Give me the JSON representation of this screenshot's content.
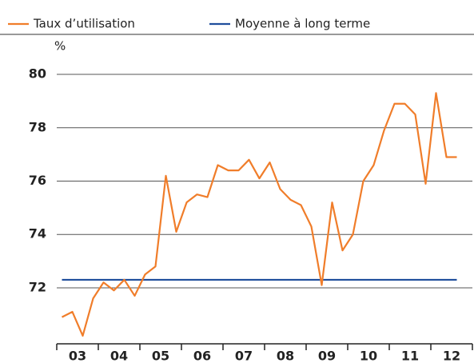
{
  "chart_data": {
    "type": "line",
    "unit_label": "%",
    "x": [
      3.125,
      3.375,
      3.625,
      3.875,
      4.125,
      4.375,
      4.625,
      4.875,
      5.125,
      5.375,
      5.625,
      5.875,
      6.125,
      6.375,
      6.625,
      6.875,
      7.125,
      7.375,
      7.625,
      7.875,
      8.125,
      8.375,
      8.625,
      8.875,
      9.125,
      9.375,
      9.625,
      9.875,
      10.125,
      10.375,
      10.625,
      10.875,
      11.125,
      11.375,
      11.625,
      11.875,
      12.125,
      12.375,
      12.625
    ],
    "series": [
      {
        "name": "Taux d’utilisation",
        "color": "#f07d2a",
        "values": [
          70.9,
          71.1,
          70.2,
          71.6,
          72.2,
          71.9,
          72.3,
          71.7,
          72.5,
          72.8,
          76.2,
          74.1,
          75.2,
          75.5,
          75.4,
          76.6,
          76.4,
          76.4,
          76.8,
          76.1,
          76.7,
          75.7,
          75.3,
          75.1,
          74.3,
          72.1,
          75.2,
          73.4,
          74.0,
          76.0,
          76.6,
          77.9,
          78.9,
          78.9,
          78.5,
          75.9,
          79.3,
          76.9,
          76.9
        ]
      },
      {
        "name": "Moyenne à long terme",
        "color": "#1f4e9c",
        "values": [
          72.3,
          72.3,
          72.3,
          72.3,
          72.3,
          72.3,
          72.3,
          72.3,
          72.3,
          72.3,
          72.3,
          72.3,
          72.3,
          72.3,
          72.3,
          72.3,
          72.3,
          72.3,
          72.3,
          72.3,
          72.3,
          72.3,
          72.3,
          72.3,
          72.3,
          72.3,
          72.3,
          72.3,
          72.3,
          72.3,
          72.3,
          72.3,
          72.3,
          72.3,
          72.3,
          72.3,
          72.3,
          72.3,
          72.3
        ]
      }
    ],
    "xlim": [
      3,
      13
    ],
    "xticks": [
      {
        "value": 3,
        "label": "03"
      },
      {
        "value": 4,
        "label": "04"
      },
      {
        "value": 5,
        "label": "05"
      },
      {
        "value": 6,
        "label": "06"
      },
      {
        "value": 7,
        "label": "07"
      },
      {
        "value": 8,
        "label": "08"
      },
      {
        "value": 9,
        "label": "09"
      },
      {
        "value": 10,
        "label": "10"
      },
      {
        "value": 11,
        "label": "11"
      },
      {
        "value": 12,
        "label": "12"
      }
    ],
    "ylim": [
      69.9,
      80.4
    ],
    "yticks": [
      72,
      74,
      76,
      78,
      80
    ],
    "grid": true
  }
}
